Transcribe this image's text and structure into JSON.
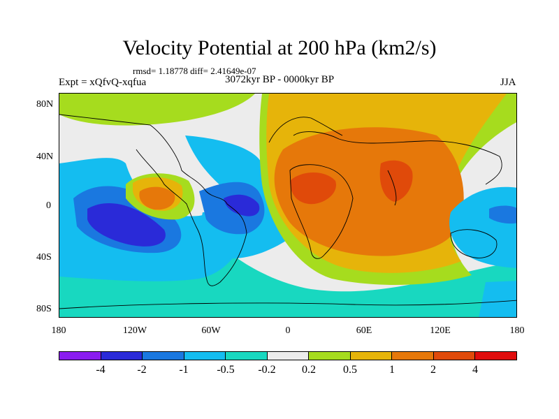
{
  "title": "Velocity Potential at 200 hPa (km2/s)",
  "stats": "rmsd= 1.18778 diff= 2.41649e-07",
  "experiment": "Expt = xQfvQ-xqfua",
  "period": "3072kyr BP - 0000kyr BP",
  "season": "JJA",
  "lat_ticks": [
    "80N",
    "40N",
    "0",
    "40S",
    "80S"
  ],
  "lon_ticks": [
    "180",
    "120W",
    "60W",
    "0",
    "60E",
    "120E",
    "180"
  ],
  "colorbar": {
    "colors": [
      "#8a1cf0",
      "#2a2ad8",
      "#1a78e0",
      "#14bdf0",
      "#18d8c0",
      "#ececec",
      "#a6dc1e",
      "#e6b40a",
      "#e6780a",
      "#e04a0a",
      "#e00c0c"
    ],
    "labels": [
      "-4",
      "-2",
      "-1",
      "-0.5",
      "-0.2",
      "0.2",
      "0.5",
      "1",
      "2",
      "4"
    ]
  }
}
